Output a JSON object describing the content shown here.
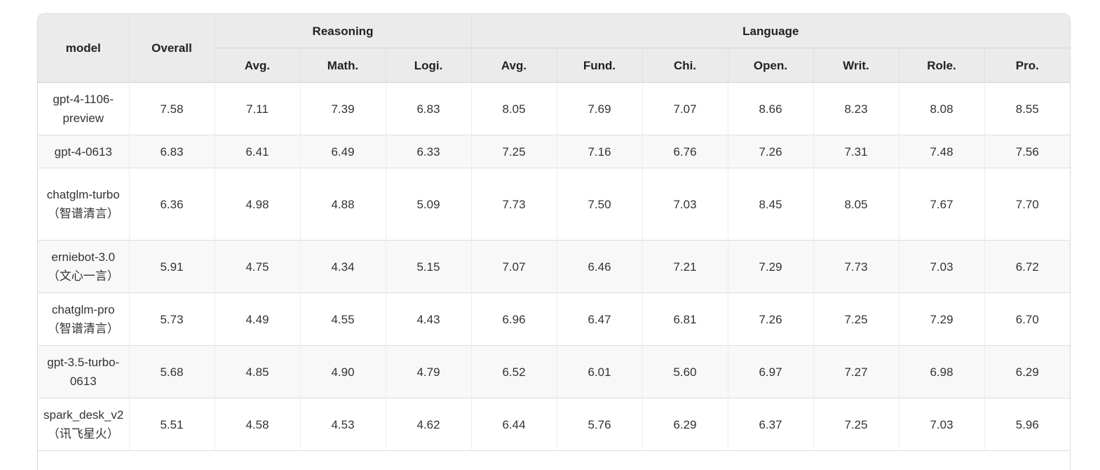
{
  "table": {
    "headers": {
      "model": "model",
      "overall": "Overall",
      "reasoning": "Reasoning",
      "language": "Language",
      "reasoning_cols": [
        "Avg.",
        "Math.",
        "Logi."
      ],
      "language_cols": [
        "Avg.",
        "Fund.",
        "Chi.",
        "Open.",
        "Writ.",
        "Role.",
        "Pro."
      ]
    },
    "rows": [
      {
        "model": "gpt-4-1106-preview",
        "values": [
          "7.58",
          "7.11",
          "7.39",
          "6.83",
          "8.05",
          "7.69",
          "7.07",
          "8.66",
          "8.23",
          "8.08",
          "8.55"
        ]
      },
      {
        "model": "gpt-4-0613",
        "values": [
          "6.83",
          "6.41",
          "6.49",
          "6.33",
          "7.25",
          "7.16",
          "6.76",
          "7.26",
          "7.31",
          "7.48",
          "7.56"
        ]
      },
      {
        "model": "chatglm-turbo（智谱清言）",
        "values": [
          "6.36",
          "4.98",
          "4.88",
          "5.09",
          "7.73",
          "7.50",
          "7.03",
          "8.45",
          "8.05",
          "7.67",
          "7.70"
        ]
      },
      {
        "model": "erniebot-3.0（文心一言）",
        "values": [
          "5.91",
          "4.75",
          "4.34",
          "5.15",
          "7.07",
          "6.46",
          "7.21",
          "7.29",
          "7.73",
          "7.03",
          "6.72"
        ]
      },
      {
        "model": "chatglm-pro（智谱清言）",
        "values": [
          "5.73",
          "4.49",
          "4.55",
          "4.43",
          "6.96",
          "6.47",
          "6.81",
          "7.26",
          "7.25",
          "7.29",
          "6.70"
        ]
      },
      {
        "model": "gpt-3.5-turbo-0613",
        "values": [
          "5.68",
          "4.85",
          "4.90",
          "4.79",
          "6.52",
          "6.01",
          "5.60",
          "6.97",
          "7.27",
          "6.98",
          "6.29"
        ]
      },
      {
        "model": "spark_desk_v2（讯飞星火）",
        "values": [
          "5.51",
          "4.58",
          "4.53",
          "4.62",
          "6.44",
          "5.76",
          "6.29",
          "6.37",
          "7.25",
          "7.03",
          "5.96"
        ]
      }
    ]
  }
}
